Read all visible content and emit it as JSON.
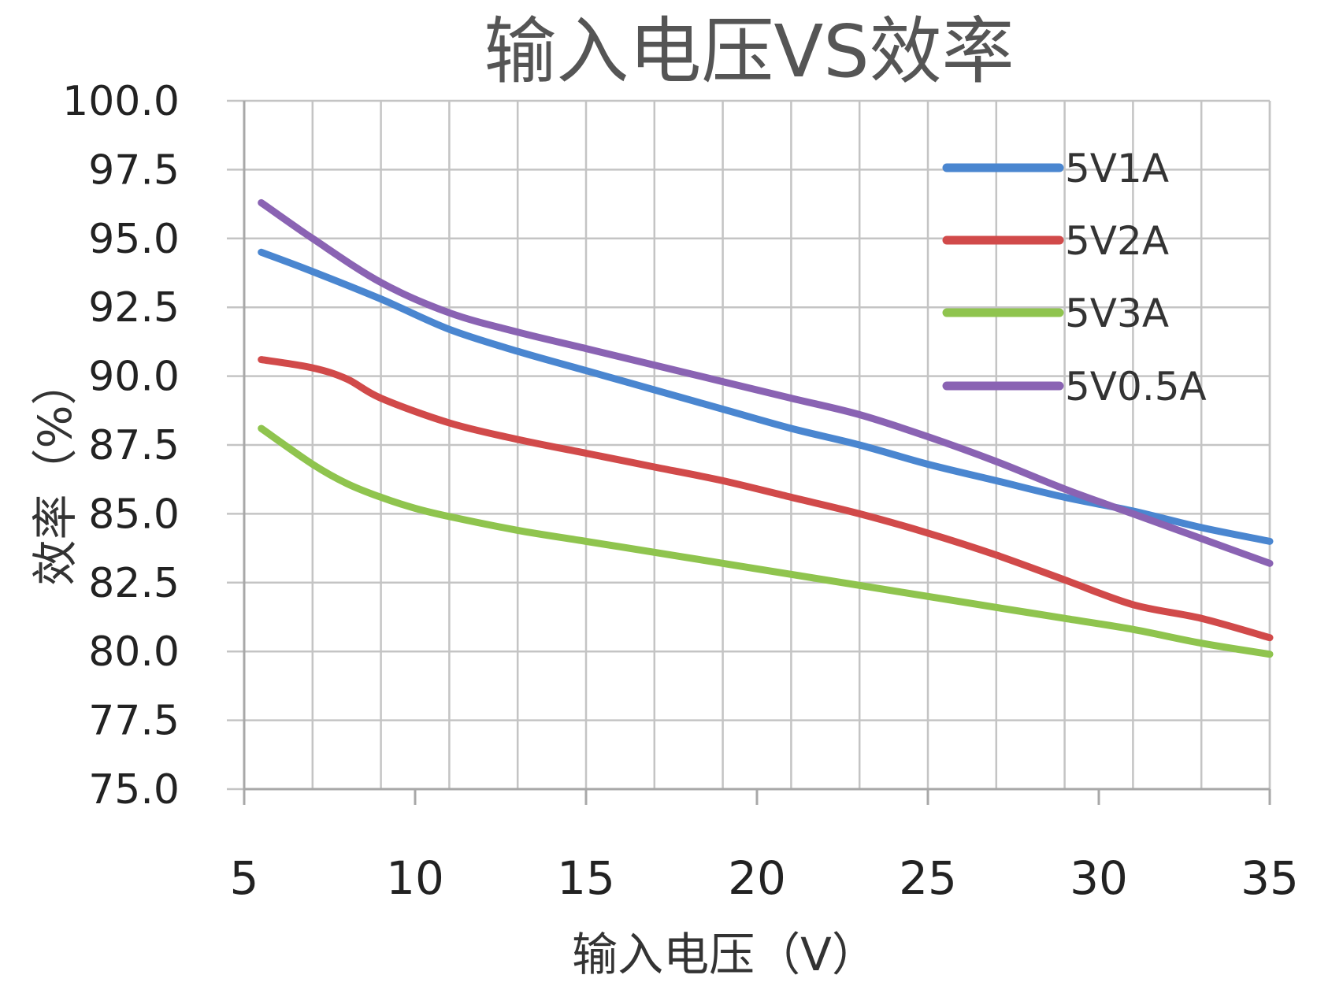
{
  "chart_data": {
    "type": "line",
    "title": "输入电压VS效率",
    "xlabel": "输入电压（V）",
    "ylabel": "效率（%）",
    "xlim": [
      5,
      35
    ],
    "ylim": [
      75,
      100
    ],
    "xticks": [
      "5",
      "10",
      "15",
      "20",
      "25",
      "30",
      "35"
    ],
    "yticks": [
      "75.0",
      "77.5",
      "80.0",
      "82.5",
      "85.0",
      "87.5",
      "90.0",
      "92.5",
      "95.0",
      "97.5",
      "100.0"
    ],
    "grid": true,
    "legend_position": "top-right",
    "series": [
      {
        "name": "5V1A",
        "color": "#4a86d0",
        "x": [
          5.5,
          7,
          9,
          11,
          13,
          15,
          17,
          19,
          21,
          23,
          25,
          27,
          29,
          31,
          33,
          35
        ],
        "y": [
          94.5,
          93.8,
          92.8,
          91.7,
          90.9,
          90.2,
          89.5,
          88.8,
          88.1,
          87.5,
          86.8,
          86.2,
          85.6,
          85.1,
          84.5,
          84.0
        ]
      },
      {
        "name": "5V2A",
        "color": "#d14a4a",
        "x": [
          5.5,
          7,
          8,
          9,
          11,
          13,
          15,
          17,
          19,
          21,
          23,
          25,
          27,
          29,
          31,
          33,
          35
        ],
        "y": [
          90.6,
          90.3,
          89.9,
          89.2,
          88.3,
          87.7,
          87.2,
          86.7,
          86.2,
          85.6,
          85.0,
          84.3,
          83.5,
          82.6,
          81.7,
          81.2,
          80.5
        ]
      },
      {
        "name": "5V3A",
        "color": "#8fc44e",
        "x": [
          5.5,
          7,
          8,
          9,
          10,
          11,
          13,
          15,
          17,
          19,
          21,
          23,
          25,
          27,
          29,
          31,
          33,
          35
        ],
        "y": [
          88.1,
          86.8,
          86.1,
          85.6,
          85.2,
          84.9,
          84.4,
          84.0,
          83.6,
          83.2,
          82.8,
          82.4,
          82.0,
          81.6,
          81.2,
          80.8,
          80.3,
          79.9
        ]
      },
      {
        "name": "5V0.5A",
        "color": "#8a63b3",
        "x": [
          5.5,
          7,
          9,
          11,
          13,
          15,
          17,
          19,
          21,
          23,
          25,
          27,
          29,
          31,
          33,
          35
        ],
        "y": [
          96.3,
          95.0,
          93.4,
          92.3,
          91.6,
          91.0,
          90.4,
          89.8,
          89.2,
          88.6,
          87.8,
          86.9,
          85.9,
          85.0,
          84.1,
          83.2
        ]
      }
    ]
  }
}
